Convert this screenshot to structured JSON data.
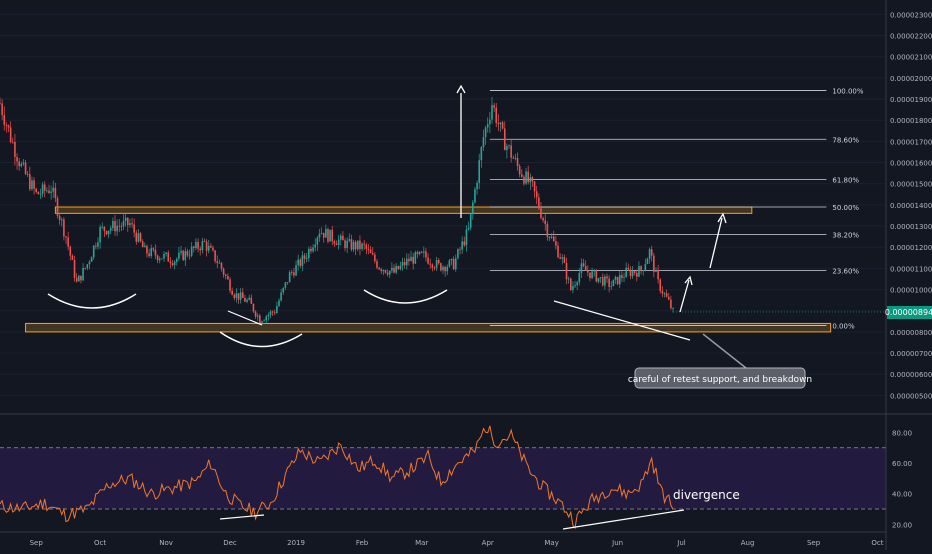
{
  "chart_data": [
    {
      "type": "candlestick",
      "name": "price",
      "y_scale": "linear",
      "ylim": [
        4.5e-06,
        2.33e-05
      ],
      "y_ticks": [
        "0.00000500",
        "0.00000600",
        "0.00000700",
        "0.00000800",
        "0.00000900",
        "0.00001000",
        "0.00001100",
        "0.00001200",
        "0.00001300",
        "0.00001400",
        "0.00001500",
        "0.00001600",
        "0.00001700",
        "0.00001800",
        "0.00001900",
        "0.00002000",
        "0.00002100",
        "0.00002200",
        "0.00002300"
      ],
      "x_ticks": [
        "Sep",
        "Oct",
        "Nov",
        "Dec",
        "2019",
        "Feb",
        "Mar",
        "Apr",
        "May",
        "Jun",
        "Jul",
        "Aug",
        "Sep",
        "Oct"
      ],
      "x_range": [
        "2018-08-15",
        "2019-10-05"
      ],
      "current_price": "0.00000894",
      "current_price_value": 8.94e-06,
      "price_path": [
        [
          "2018-08-15",
          1.88e-05
        ],
        [
          "2018-08-20",
          1.72e-05
        ],
        [
          "2018-08-25",
          1.58e-05
        ],
        [
          "2018-09-01",
          1.45e-05
        ],
        [
          "2018-09-08",
          1.48e-05
        ],
        [
          "2018-09-15",
          1.25e-05
        ],
        [
          "2018-09-20",
          1.03e-05
        ],
        [
          "2018-09-25",
          1.12e-05
        ],
        [
          "2018-10-01",
          1.28e-05
        ],
        [
          "2018-10-08",
          1.3e-05
        ],
        [
          "2018-10-15",
          1.31e-05
        ],
        [
          "2018-10-22",
          1.18e-05
        ],
        [
          "2018-10-29",
          1.16e-05
        ],
        [
          "2018-11-05",
          1.14e-05
        ],
        [
          "2018-11-12",
          1.18e-05
        ],
        [
          "2018-11-19",
          1.22e-05
        ],
        [
          "2018-11-26",
          1.12e-05
        ],
        [
          "2018-12-03",
          9.8e-06
        ],
        [
          "2018-12-10",
          9.4e-06
        ],
        [
          "2018-12-15",
          8.6e-06
        ],
        [
          "2018-12-22",
          9e-06
        ],
        [
          "2018-12-29",
          1.07e-05
        ],
        [
          "2019-01-05",
          1.15e-05
        ],
        [
          "2019-01-12",
          1.28e-05
        ],
        [
          "2019-01-19",
          1.24e-05
        ],
        [
          "2019-01-26",
          1.21e-05
        ],
        [
          "2019-02-02",
          1.2e-05
        ],
        [
          "2019-02-09",
          1.11e-05
        ],
        [
          "2019-02-16",
          1.08e-05
        ],
        [
          "2019-02-23",
          1.14e-05
        ],
        [
          "2019-03-02",
          1.16e-05
        ],
        [
          "2019-03-09",
          1.11e-05
        ],
        [
          "2019-03-16",
          1.12e-05
        ],
        [
          "2019-03-23",
          1.28e-05
        ],
        [
          "2019-03-30",
          1.72e-05
        ],
        [
          "2019-04-03",
          1.88e-05
        ],
        [
          "2019-04-08",
          1.72e-05
        ],
        [
          "2019-04-15",
          1.58e-05
        ],
        [
          "2019-04-22",
          1.48e-05
        ],
        [
          "2019-04-29",
          1.28e-05
        ],
        [
          "2019-05-06",
          1.14e-05
        ],
        [
          "2019-05-10",
          1e-05
        ],
        [
          "2019-05-15",
          1.1e-05
        ],
        [
          "2019-05-22",
          1.06e-05
        ],
        [
          "2019-05-29",
          1.02e-05
        ],
        [
          "2019-06-05",
          1.08e-05
        ],
        [
          "2019-06-12",
          1.09e-05
        ],
        [
          "2019-06-16",
          1.18e-05
        ],
        [
          "2019-06-20",
          1.03e-05
        ],
        [
          "2019-06-25",
          9.4e-06
        ],
        [
          "2019-06-27",
          8.94e-06
        ]
      ],
      "fibonacci_levels": [
        {
          "label": "100.00%",
          "value": 1.94e-05
        },
        {
          "label": "78.60%",
          "value": 1.71e-05
        },
        {
          "label": "61.80%",
          "value": 1.52e-05
        },
        {
          "label": "50.00%",
          "value": 1.39e-05
        },
        {
          "label": "38.20%",
          "value": 1.26e-05
        },
        {
          "label": "23.60%",
          "value": 1.09e-05
        },
        {
          "label": "0.00%",
          "value": 8.3e-06
        }
      ],
      "fib_start": "2019-04-02",
      "fib_end": "2019-09-07",
      "zones": [
        {
          "from": "2018-09-10",
          "to": "2019-08-03",
          "low": 1.36e-05,
          "high": 1.39e-05
        },
        {
          "from": "2018-08-27",
          "to": "2019-09-09",
          "low": 8e-06,
          "high": 8.4e-06
        }
      ],
      "annotation": "careful of retest support, and breakdown",
      "colors": {
        "up": "#26a69a",
        "down": "#ef5350",
        "zone": "#f7a21b",
        "current_price": "#089981"
      }
    },
    {
      "type": "line",
      "name": "rsi",
      "ylim": [
        15,
        92
      ],
      "y_ticks": [
        "20.00",
        "40.00",
        "60.00",
        "80.00"
      ],
      "bands": [
        30,
        70
      ],
      "annotation": "divergence",
      "rsi_path": [
        [
          "2018-08-15",
          32
        ],
        [
          "2018-08-25",
          30
        ],
        [
          "2018-09-05",
          34
        ],
        [
          "2018-09-15",
          26
        ],
        [
          "2018-09-25",
          30
        ],
        [
          "2018-10-05",
          46
        ],
        [
          "2018-10-15",
          50
        ],
        [
          "2018-10-25",
          40
        ],
        [
          "2018-11-05",
          44
        ],
        [
          "2018-11-15",
          48
        ],
        [
          "2018-11-22",
          60
        ],
        [
          "2018-11-29",
          40
        ],
        [
          "2018-12-06",
          32
        ],
        [
          "2018-12-13",
          28
        ],
        [
          "2018-12-20",
          34
        ],
        [
          "2018-12-27",
          52
        ],
        [
          "2019-01-03",
          68
        ],
        [
          "2019-01-12",
          60
        ],
        [
          "2019-01-22",
          72
        ],
        [
          "2019-01-30",
          56
        ],
        [
          "2019-02-07",
          62
        ],
        [
          "2019-02-15",
          50
        ],
        [
          "2019-02-24",
          56
        ],
        [
          "2019-03-04",
          64
        ],
        [
          "2019-03-10",
          48
        ],
        [
          "2019-03-18",
          60
        ],
        [
          "2019-03-26",
          68
        ],
        [
          "2019-03-31",
          84
        ],
        [
          "2019-04-05",
          74
        ],
        [
          "2019-04-12",
          78
        ],
        [
          "2019-04-20",
          56
        ],
        [
          "2019-04-27",
          44
        ],
        [
          "2019-05-05",
          34
        ],
        [
          "2019-05-12",
          22
        ],
        [
          "2019-05-20",
          36
        ],
        [
          "2019-05-29",
          44
        ],
        [
          "2019-06-06",
          40
        ],
        [
          "2019-06-12",
          46
        ],
        [
          "2019-06-17",
          62
        ],
        [
          "2019-06-22",
          40
        ],
        [
          "2019-06-27",
          32
        ]
      ],
      "colors": {
        "line": "#f0782a",
        "band_fill": "#2a1e4a",
        "band_line": "#9598a1"
      }
    }
  ]
}
